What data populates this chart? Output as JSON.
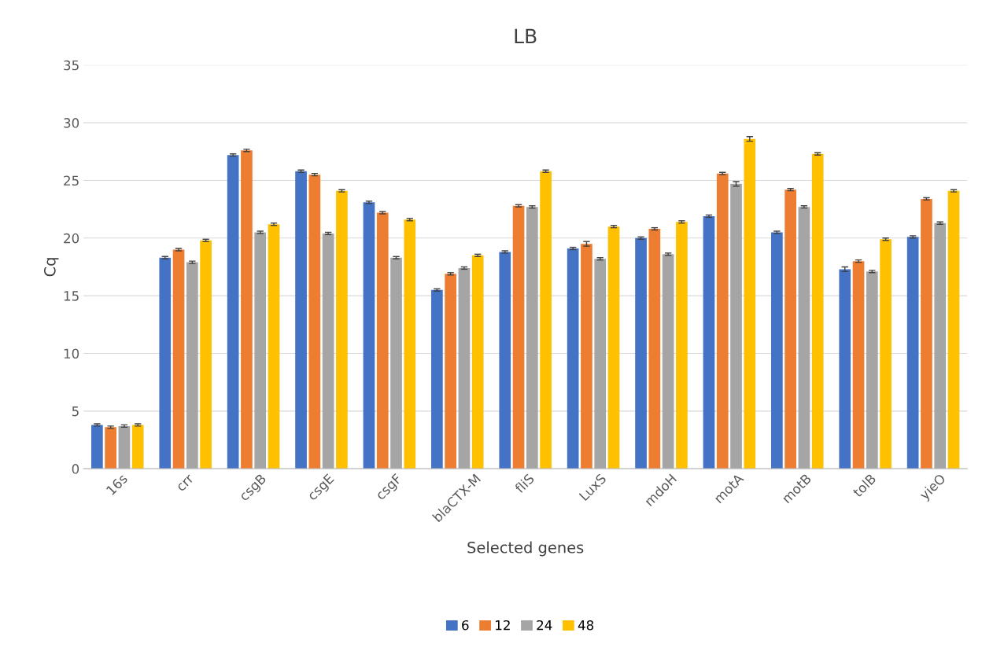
{
  "chart_data": {
    "type": "bar",
    "title": "LB",
    "xlabel": "Selected genes",
    "ylabel": "Cq",
    "categories": [
      "16s",
      "crr",
      "csgB",
      "csgE",
      "csgF",
      "blaCTX-M",
      "fliS",
      "LuxS",
      "mdoH",
      "motA",
      "motB",
      "tolB",
      "yieO"
    ],
    "series": [
      {
        "name": "6",
        "color": "#4472c4",
        "values": [
          3.8,
          18.3,
          27.2,
          25.8,
          23.1,
          15.5,
          18.8,
          19.1,
          20.0,
          21.9,
          20.5,
          17.3,
          20.1
        ],
        "errors": [
          0.1,
          0.1,
          0.1,
          0.1,
          0.1,
          0.1,
          0.1,
          0.1,
          0.1,
          0.1,
          0.1,
          0.2,
          0.1
        ]
      },
      {
        "name": "12",
        "color": "#ed7d31",
        "values": [
          3.6,
          19.0,
          27.6,
          25.5,
          22.2,
          16.9,
          22.8,
          19.5,
          20.8,
          25.6,
          24.2,
          18.0,
          23.4
        ],
        "errors": [
          0.1,
          0.1,
          0.1,
          0.1,
          0.1,
          0.1,
          0.1,
          0.2,
          0.1,
          0.1,
          0.1,
          0.1,
          0.1
        ]
      },
      {
        "name": "24",
        "color": "#a5a5a5",
        "values": [
          3.7,
          17.9,
          20.5,
          20.4,
          18.3,
          17.4,
          22.7,
          18.2,
          18.6,
          24.7,
          22.7,
          17.1,
          21.3
        ],
        "errors": [
          0.1,
          0.1,
          0.1,
          0.1,
          0.1,
          0.1,
          0.1,
          0.1,
          0.1,
          0.2,
          0.1,
          0.1,
          0.1
        ]
      },
      {
        "name": "48",
        "color": "#ffc000",
        "values": [
          3.8,
          19.8,
          21.2,
          24.1,
          21.6,
          18.5,
          25.8,
          21.0,
          21.4,
          28.6,
          27.3,
          19.9,
          24.1
        ],
        "errors": [
          0.1,
          0.1,
          0.1,
          0.1,
          0.1,
          0.1,
          0.1,
          0.1,
          0.1,
          0.2,
          0.1,
          0.1,
          0.1
        ]
      }
    ],
    "ylim": [
      0,
      35
    ],
    "yticks": [
      0,
      5,
      10,
      15,
      20,
      25,
      30,
      35
    ],
    "grid": "y",
    "legend": "bottom"
  }
}
